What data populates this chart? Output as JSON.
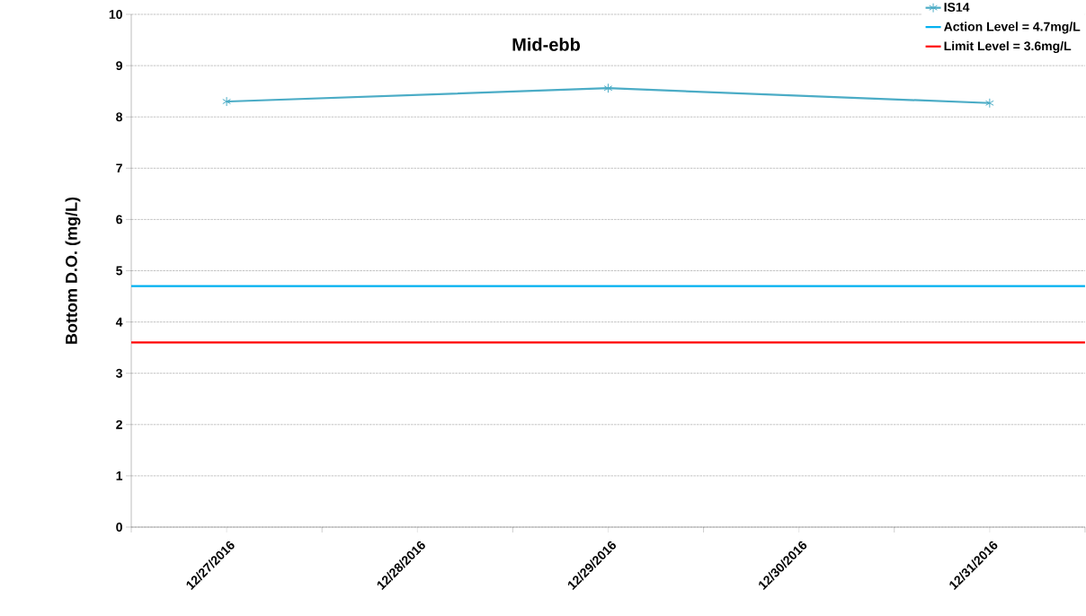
{
  "chart_data": {
    "type": "line",
    "title": "Mid-ebb",
    "ylabel": "Bottom  D.O. (mg/L)",
    "categories": [
      "12/27/2016",
      "12/28/2016",
      "12/29/2016",
      "12/30/2016",
      "12/31/2016"
    ],
    "series": [
      {
        "name": "IS14",
        "color": "#4bacc6",
        "values": [
          8.3,
          null,
          8.56,
          null,
          8.27
        ]
      }
    ],
    "ref_lines": [
      {
        "axis": "y",
        "value": 4.7,
        "label": "Action Level = 4.7mg/L",
        "color": "#00b0f0"
      },
      {
        "axis": "y",
        "value": 3.6,
        "label": "Limit Level = 3.6mg/L",
        "color": "#ff0000"
      }
    ],
    "ylim": [
      0,
      10
    ],
    "yticks": [
      0,
      1,
      2,
      3,
      4,
      5,
      6,
      7,
      8,
      9,
      10
    ],
    "grid": "y",
    "legend": "top right",
    "marker": "cross",
    "line_style": "solid"
  }
}
